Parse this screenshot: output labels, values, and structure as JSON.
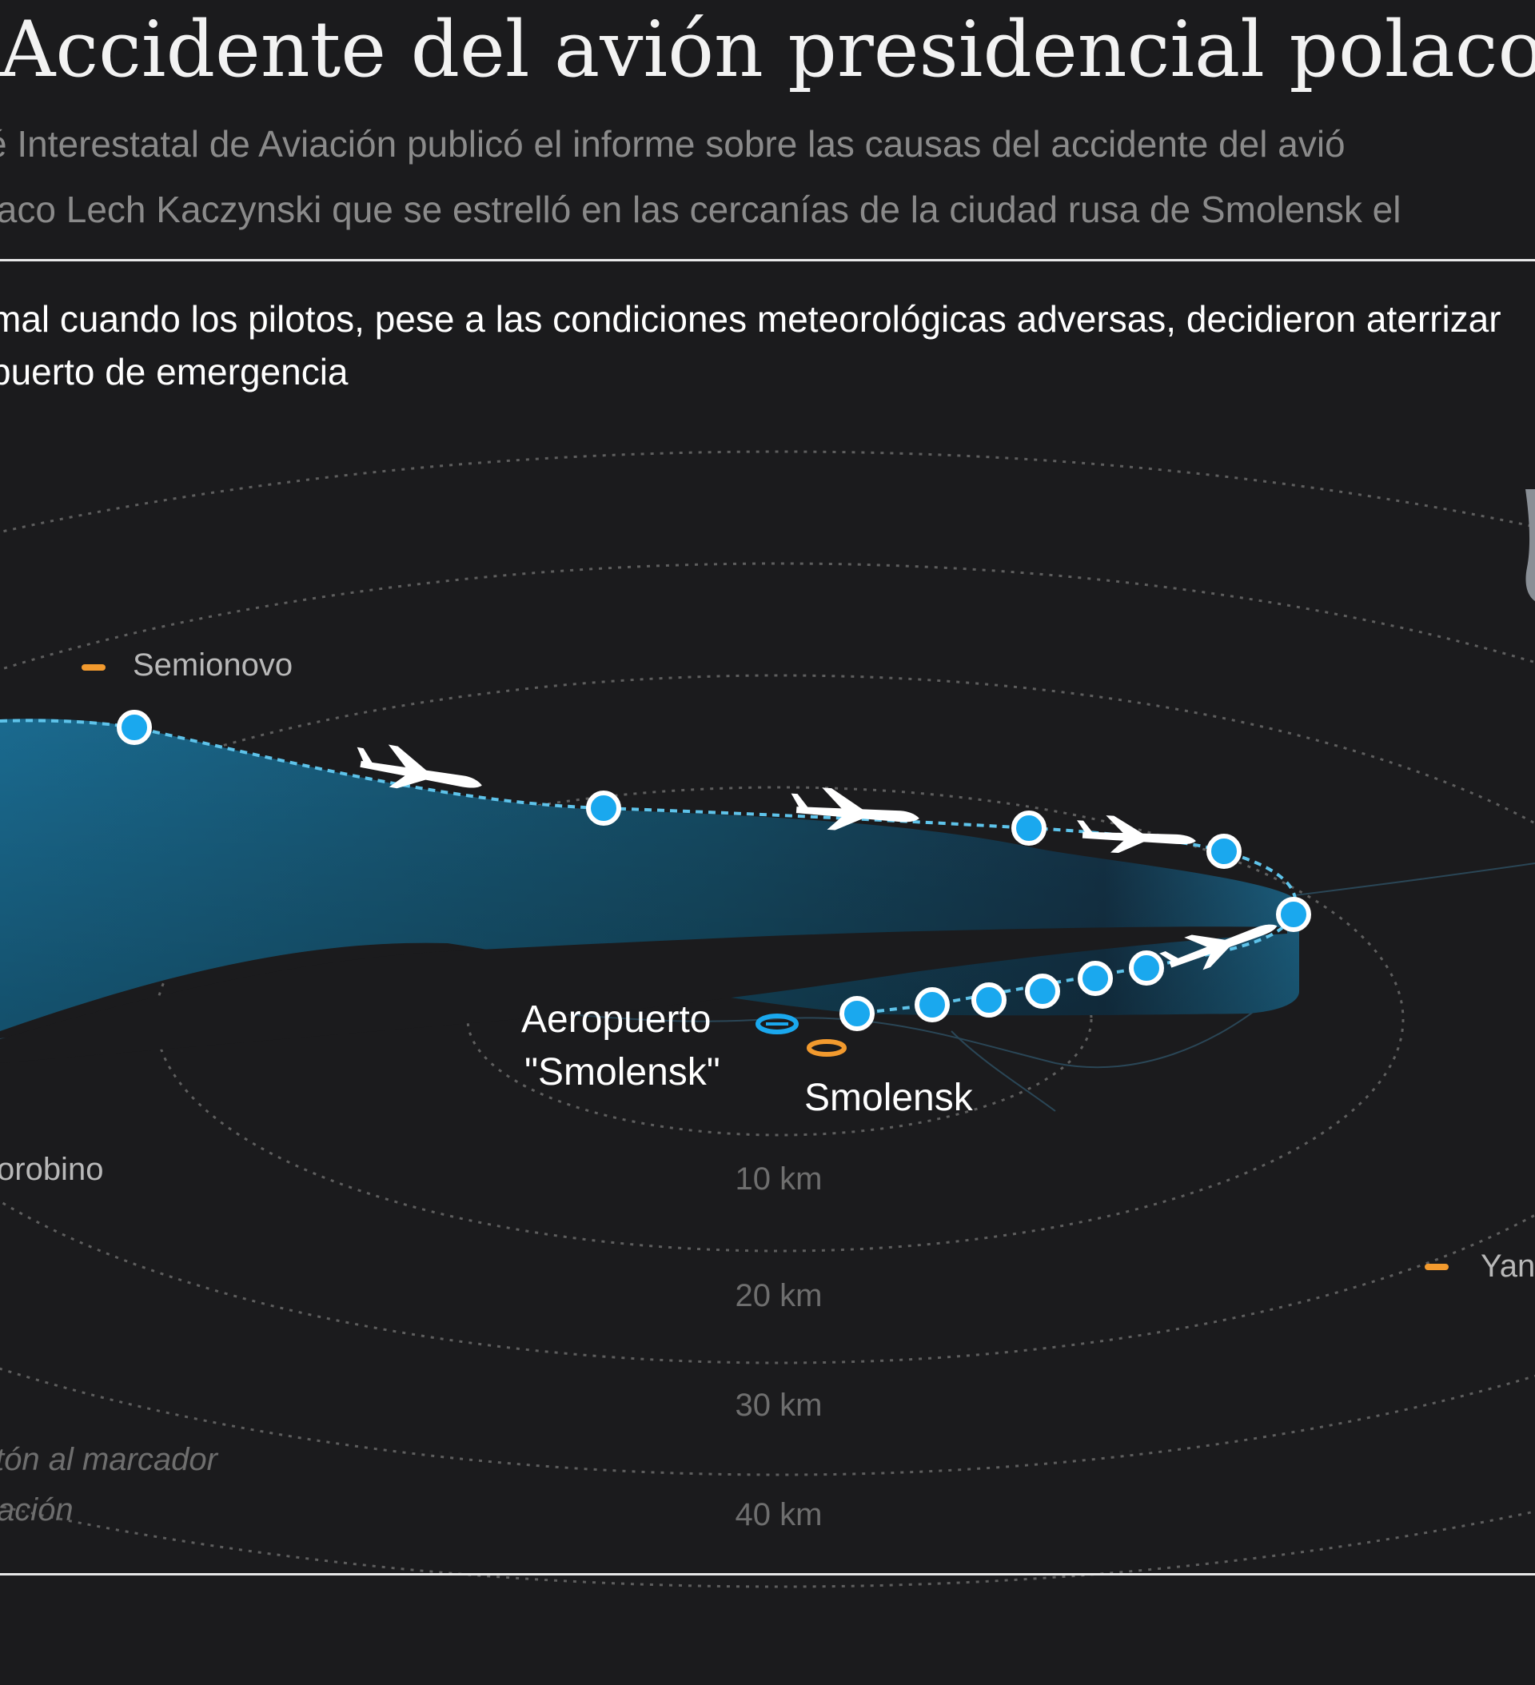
{
  "header": {
    "title": "Accidente del avión presidencial polaco",
    "subtitle_line1": "ité Interestatal de Aviación publicó el informe sobre las causas del accidente del avió",
    "subtitle_line2": "olaco Lech Kaczynski que se estrelló en las cercanías de la ciudad rusa de Smolensk el"
  },
  "description": {
    "line1": "mal cuando los pilotos, pese a las condiciones meteorológicas adversas, decidieron aterrizar",
    "line2": "puerto de emergencia"
  },
  "map": {
    "places": [
      {
        "name": "Semionovo",
        "marker_color": "#f29a2e"
      },
      {
        "name": "orobino"
      },
      {
        "name": "Smolensk",
        "marker_color": "#f29a2e"
      },
      {
        "name": "Yan",
        "marker_color": "#f29a2e"
      }
    ],
    "airport": {
      "line1": "Aeropuerto",
      "line2": "\"Smolensk\"",
      "marker_color": "#1aa8ee"
    },
    "distance_rings": [
      "10 km",
      "20 km",
      "30 km",
      "40 km"
    ],
    "hint_line1": "tón al marcador",
    "hint_line2": "ación",
    "waypoint_count": 12,
    "plane_icon_count": 4
  },
  "colors": {
    "background": "#1b1b1d",
    "route_dot": "#1aa8ee",
    "route_area": "#1c6f92",
    "town_marker": "#f29a2e",
    "ring": "#6a6a6a"
  }
}
